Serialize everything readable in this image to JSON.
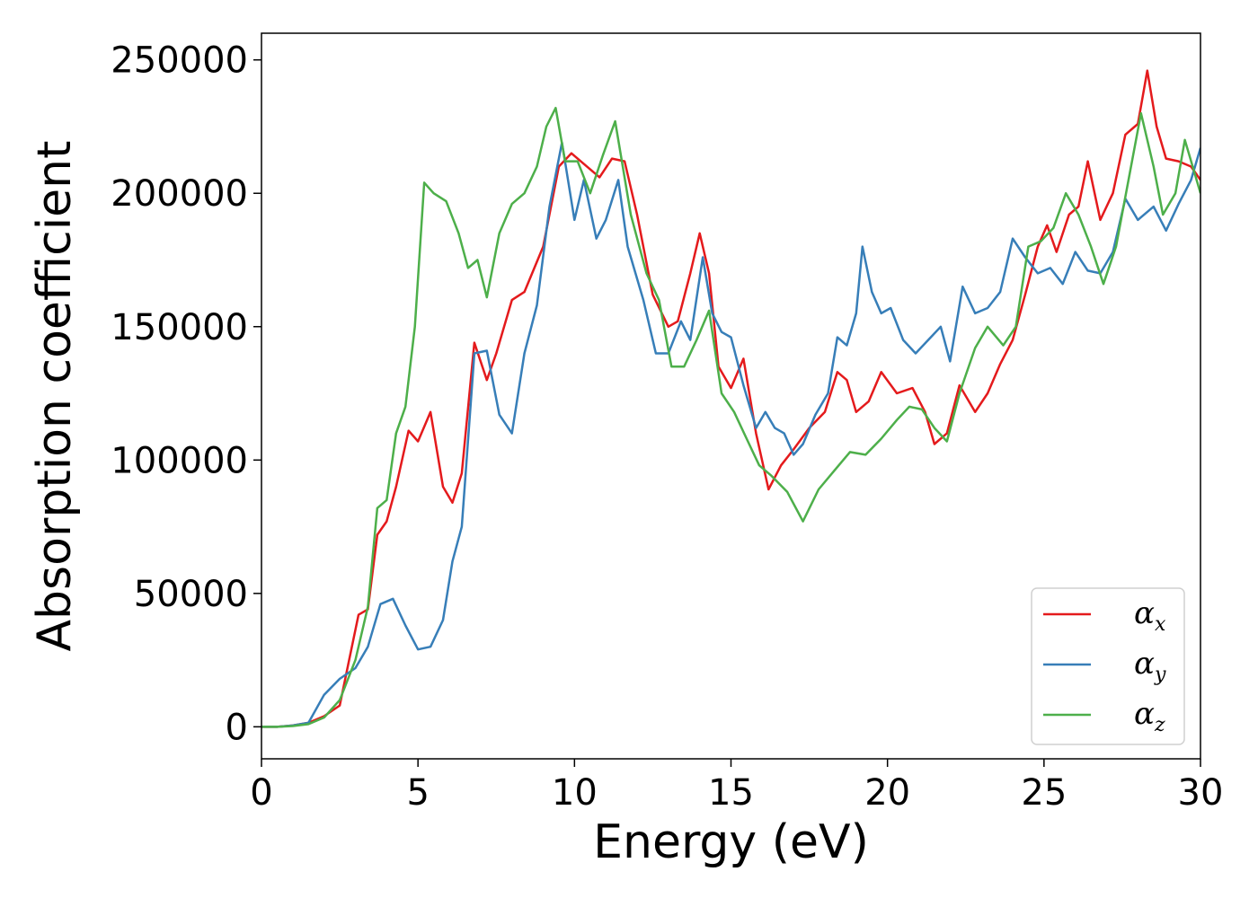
{
  "chart_data": {
    "type": "line",
    "title": "",
    "xlabel": "Energy (eV)",
    "ylabel": "Absorption coefficient",
    "xlim": [
      0,
      30
    ],
    "ylim": [
      -12000,
      260000
    ],
    "xticks": [
      0,
      5,
      10,
      15,
      20,
      25,
      30
    ],
    "yticks": [
      0,
      50000,
      100000,
      150000,
      200000,
      250000
    ],
    "grid": false,
    "legend_position": "bottom-right",
    "series": [
      {
        "name": "x",
        "color": "#e41a1c",
        "points": [
          [
            0,
            0
          ],
          [
            0.5,
            0
          ],
          [
            1.0,
            500
          ],
          [
            1.5,
            1500
          ],
          [
            2.0,
            4000
          ],
          [
            2.5,
            8000
          ],
          [
            2.8,
            25000
          ],
          [
            3.1,
            42000
          ],
          [
            3.4,
            44000
          ],
          [
            3.7,
            72000
          ],
          [
            4.0,
            77000
          ],
          [
            4.3,
            90000
          ],
          [
            4.7,
            111000
          ],
          [
            5.0,
            107000
          ],
          [
            5.4,
            118000
          ],
          [
            5.8,
            90000
          ],
          [
            6.1,
            84000
          ],
          [
            6.4,
            95000
          ],
          [
            6.8,
            144000
          ],
          [
            7.2,
            130000
          ],
          [
            7.5,
            140000
          ],
          [
            8.0,
            160000
          ],
          [
            8.4,
            163000
          ],
          [
            9.0,
            180000
          ],
          [
            9.5,
            210000
          ],
          [
            9.9,
            215000
          ],
          [
            10.3,
            211000
          ],
          [
            10.8,
            206000
          ],
          [
            11.2,
            213000
          ],
          [
            11.6,
            212000
          ],
          [
            12.0,
            192000
          ],
          [
            12.5,
            162000
          ],
          [
            13.0,
            150000
          ],
          [
            13.3,
            152000
          ],
          [
            13.7,
            170000
          ],
          [
            14.0,
            185000
          ],
          [
            14.3,
            170000
          ],
          [
            14.6,
            135000
          ],
          [
            15.0,
            127000
          ],
          [
            15.4,
            138000
          ],
          [
            15.8,
            110000
          ],
          [
            16.2,
            89000
          ],
          [
            16.6,
            98000
          ],
          [
            17.0,
            104000
          ],
          [
            17.5,
            112000
          ],
          [
            18.0,
            118000
          ],
          [
            18.4,
            133000
          ],
          [
            18.7,
            130000
          ],
          [
            19.0,
            118000
          ],
          [
            19.4,
            122000
          ],
          [
            19.8,
            133000
          ],
          [
            20.3,
            125000
          ],
          [
            20.8,
            127000
          ],
          [
            21.2,
            118000
          ],
          [
            21.5,
            106000
          ],
          [
            21.9,
            110000
          ],
          [
            22.3,
            128000
          ],
          [
            22.8,
            118000
          ],
          [
            23.2,
            125000
          ],
          [
            23.6,
            136000
          ],
          [
            24.0,
            145000
          ],
          [
            24.4,
            162000
          ],
          [
            24.8,
            180000
          ],
          [
            25.1,
            188000
          ],
          [
            25.4,
            178000
          ],
          [
            25.8,
            192000
          ],
          [
            26.1,
            195000
          ],
          [
            26.4,
            212000
          ],
          [
            26.8,
            190000
          ],
          [
            27.2,
            200000
          ],
          [
            27.6,
            222000
          ],
          [
            28.0,
            226000
          ],
          [
            28.3,
            246000
          ],
          [
            28.6,
            225000
          ],
          [
            28.9,
            213000
          ],
          [
            29.3,
            212000
          ],
          [
            29.7,
            210000
          ],
          [
            30.0,
            205000
          ]
        ]
      },
      {
        "name": "y",
        "color": "#377eb8",
        "points": [
          [
            0,
            0
          ],
          [
            0.5,
            0
          ],
          [
            1.0,
            500
          ],
          [
            1.5,
            1500
          ],
          [
            2.0,
            12000
          ],
          [
            2.5,
            18000
          ],
          [
            3.0,
            22000
          ],
          [
            3.4,
            30000
          ],
          [
            3.8,
            46000
          ],
          [
            4.2,
            48000
          ],
          [
            4.6,
            38000
          ],
          [
            5.0,
            29000
          ],
          [
            5.4,
            30000
          ],
          [
            5.8,
            40000
          ],
          [
            6.1,
            62000
          ],
          [
            6.4,
            75000
          ],
          [
            6.8,
            140000
          ],
          [
            7.2,
            141000
          ],
          [
            7.6,
            117000
          ],
          [
            8.0,
            110000
          ],
          [
            8.4,
            140000
          ],
          [
            8.8,
            158000
          ],
          [
            9.2,
            195000
          ],
          [
            9.6,
            219000
          ],
          [
            10.0,
            190000
          ],
          [
            10.3,
            205000
          ],
          [
            10.7,
            183000
          ],
          [
            11.0,
            190000
          ],
          [
            11.4,
            205000
          ],
          [
            11.7,
            180000
          ],
          [
            12.2,
            160000
          ],
          [
            12.6,
            140000
          ],
          [
            13.0,
            140000
          ],
          [
            13.4,
            152000
          ],
          [
            13.7,
            145000
          ],
          [
            14.1,
            176000
          ],
          [
            14.4,
            155000
          ],
          [
            14.7,
            148000
          ],
          [
            15.0,
            146000
          ],
          [
            15.4,
            128000
          ],
          [
            15.8,
            112000
          ],
          [
            16.1,
            118000
          ],
          [
            16.4,
            112000
          ],
          [
            16.7,
            110000
          ],
          [
            17.0,
            102000
          ],
          [
            17.3,
            106000
          ],
          [
            17.7,
            117000
          ],
          [
            18.1,
            125000
          ],
          [
            18.4,
            146000
          ],
          [
            18.7,
            143000
          ],
          [
            19.0,
            155000
          ],
          [
            19.2,
            180000
          ],
          [
            19.5,
            163000
          ],
          [
            19.8,
            155000
          ],
          [
            20.1,
            157000
          ],
          [
            20.5,
            145000
          ],
          [
            20.9,
            140000
          ],
          [
            21.3,
            145000
          ],
          [
            21.7,
            150000
          ],
          [
            22.0,
            137000
          ],
          [
            22.4,
            165000
          ],
          [
            22.8,
            155000
          ],
          [
            23.2,
            157000
          ],
          [
            23.6,
            163000
          ],
          [
            24.0,
            183000
          ],
          [
            24.4,
            176000
          ],
          [
            24.8,
            170000
          ],
          [
            25.2,
            172000
          ],
          [
            25.6,
            166000
          ],
          [
            26.0,
            178000
          ],
          [
            26.4,
            171000
          ],
          [
            26.8,
            170000
          ],
          [
            27.2,
            178000
          ],
          [
            27.6,
            198000
          ],
          [
            28.0,
            190000
          ],
          [
            28.5,
            195000
          ],
          [
            28.9,
            186000
          ],
          [
            29.3,
            196000
          ],
          [
            29.7,
            205000
          ],
          [
            30.0,
            217000
          ]
        ]
      },
      {
        "name": "z",
        "color": "#4daf4a",
        "points": [
          [
            0,
            0
          ],
          [
            0.5,
            0
          ],
          [
            1.0,
            300
          ],
          [
            1.5,
            1000
          ],
          [
            2.0,
            3500
          ],
          [
            2.5,
            10000
          ],
          [
            3.0,
            25000
          ],
          [
            3.4,
            45000
          ],
          [
            3.7,
            82000
          ],
          [
            4.0,
            85000
          ],
          [
            4.3,
            110000
          ],
          [
            4.6,
            120000
          ],
          [
            4.9,
            150000
          ],
          [
            5.2,
            204000
          ],
          [
            5.5,
            200000
          ],
          [
            5.9,
            197000
          ],
          [
            6.3,
            185000
          ],
          [
            6.6,
            172000
          ],
          [
            6.9,
            175000
          ],
          [
            7.2,
            161000
          ],
          [
            7.6,
            185000
          ],
          [
            8.0,
            196000
          ],
          [
            8.4,
            200000
          ],
          [
            8.8,
            210000
          ],
          [
            9.1,
            225000
          ],
          [
            9.4,
            232000
          ],
          [
            9.7,
            212000
          ],
          [
            10.1,
            212000
          ],
          [
            10.5,
            200000
          ],
          [
            10.9,
            214000
          ],
          [
            11.3,
            227000
          ],
          [
            11.8,
            192000
          ],
          [
            12.3,
            170000
          ],
          [
            12.7,
            160000
          ],
          [
            13.1,
            135000
          ],
          [
            13.5,
            135000
          ],
          [
            13.9,
            145000
          ],
          [
            14.3,
            156000
          ],
          [
            14.7,
            125000
          ],
          [
            15.1,
            118000
          ],
          [
            15.5,
            108000
          ],
          [
            15.9,
            98000
          ],
          [
            16.3,
            94000
          ],
          [
            16.8,
            88000
          ],
          [
            17.3,
            77000
          ],
          [
            17.8,
            89000
          ],
          [
            18.3,
            96000
          ],
          [
            18.8,
            103000
          ],
          [
            19.3,
            102000
          ],
          [
            19.8,
            108000
          ],
          [
            20.3,
            115000
          ],
          [
            20.7,
            120000
          ],
          [
            21.1,
            119000
          ],
          [
            21.5,
            112000
          ],
          [
            21.9,
            107000
          ],
          [
            22.3,
            125000
          ],
          [
            22.8,
            142000
          ],
          [
            23.2,
            150000
          ],
          [
            23.7,
            143000
          ],
          [
            24.1,
            150000
          ],
          [
            24.5,
            180000
          ],
          [
            24.9,
            182000
          ],
          [
            25.3,
            187000
          ],
          [
            25.7,
            200000
          ],
          [
            26.1,
            192000
          ],
          [
            26.5,
            180000
          ],
          [
            26.9,
            166000
          ],
          [
            27.3,
            180000
          ],
          [
            27.7,
            205000
          ],
          [
            28.1,
            230000
          ],
          [
            28.5,
            210000
          ],
          [
            28.8,
            192000
          ],
          [
            29.2,
            200000
          ],
          [
            29.5,
            220000
          ],
          [
            30.0,
            200000
          ]
        ]
      }
    ]
  }
}
